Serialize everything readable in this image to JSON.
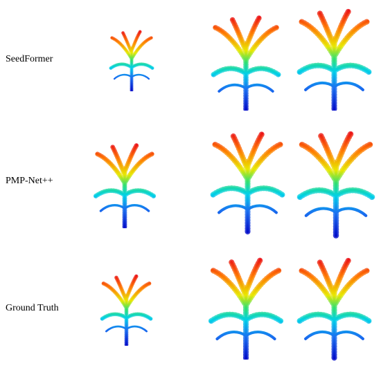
{
  "rows": [
    {
      "label": "SeedFormer"
    },
    {
      "label": "PMP-Net++"
    },
    {
      "label": "Ground Truth"
    }
  ]
}
